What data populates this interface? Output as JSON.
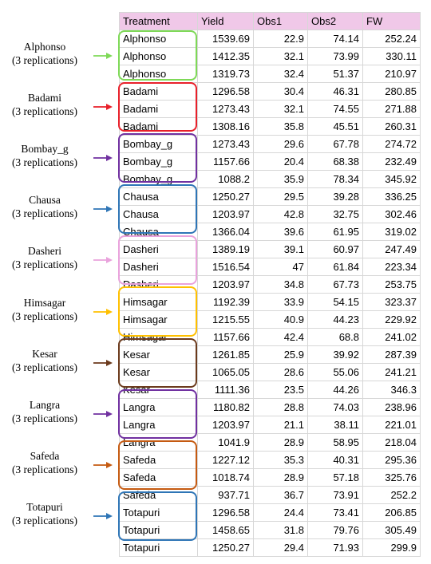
{
  "headers": [
    "Treatment",
    "Yield",
    "Obs1",
    "Obs2",
    "FW"
  ],
  "groups": [
    {
      "label": "Alphonso",
      "sub": "(3 replications)",
      "color": "#7ed957",
      "rows": [
        [
          "Alphonso",
          "1539.69",
          "22.9",
          "74.14",
          "252.24"
        ],
        [
          "Alphonso",
          "1412.35",
          "32.1",
          "73.99",
          "330.11"
        ],
        [
          "Alphonso",
          "1319.73",
          "32.4",
          "51.37",
          "210.97"
        ]
      ]
    },
    {
      "label": "Badami",
      "sub": "(3 replications)",
      "color": "#e8202a",
      "rows": [
        [
          "Badami",
          "1296.58",
          "30.4",
          "46.31",
          "280.85"
        ],
        [
          "Badami",
          "1273.43",
          "32.1",
          "74.55",
          "271.88"
        ],
        [
          "Badami",
          "1308.16",
          "35.8",
          "45.51",
          "260.31"
        ]
      ]
    },
    {
      "label": "Bombay_g",
      "sub": "(3 replications)",
      "color": "#7030a0",
      "rows": [
        [
          "Bombay_g",
          "1273.43",
          "29.6",
          "67.78",
          "274.72"
        ],
        [
          "Bombay_g",
          "1157.66",
          "20.4",
          "68.38",
          "232.49"
        ],
        [
          "Bombay_g",
          "1088.2",
          "35.9",
          "78.34",
          "345.92"
        ]
      ]
    },
    {
      "label": "Chausa",
      "sub": "(3 replications)",
      "color": "#2e75b6",
      "rows": [
        [
          "Chausa",
          "1250.27",
          "29.5",
          "39.28",
          "336.25"
        ],
        [
          "Chausa",
          "1203.97",
          "42.8",
          "32.75",
          "302.46"
        ],
        [
          "Chausa",
          "1366.04",
          "39.6",
          "61.95",
          "319.02"
        ]
      ]
    },
    {
      "label": "Dasheri",
      "sub": "(3 replications)",
      "color": "#e9a2dc",
      "rows": [
        [
          "Dasheri",
          "1389.19",
          "39.1",
          "60.97",
          "247.49"
        ],
        [
          "Dasheri",
          "1516.54",
          "47",
          "61.84",
          "223.34"
        ],
        [
          "Dasheri",
          "1203.97",
          "34.8",
          "67.73",
          "253.75"
        ]
      ]
    },
    {
      "label": "Himsagar",
      "sub": "(3 replications)",
      "color": "#ffc000",
      "rows": [
        [
          "Himsagar",
          "1192.39",
          "33.9",
          "54.15",
          "323.37"
        ],
        [
          "Himsagar",
          "1215.55",
          "40.9",
          "44.23",
          "229.92"
        ],
        [
          "Himsagar",
          "1157.66",
          "42.4",
          "68.8",
          "241.02"
        ]
      ]
    },
    {
      "label": "Kesar",
      "sub": "(3 replications)",
      "color": "#6b3a1c",
      "rows": [
        [
          "Kesar",
          "1261.85",
          "25.9",
          "39.92",
          "287.39"
        ],
        [
          "Kesar",
          "1065.05",
          "28.6",
          "55.06",
          "241.21"
        ],
        [
          "Kesar",
          "1111.36",
          "23.5",
          "44.26",
          "346.3"
        ]
      ]
    },
    {
      "label": "Langra",
      "sub": "(3 replications)",
      "color": "#7030a0",
      "rows": [
        [
          "Langra",
          "1180.82",
          "28.8",
          "74.03",
          "238.96"
        ],
        [
          "Langra",
          "1203.97",
          "21.1",
          "38.11",
          "221.01"
        ],
        [
          "Langra",
          "1041.9",
          "28.9",
          "58.95",
          "218.04"
        ]
      ]
    },
    {
      "label": "Safeda",
      "sub": "(3 replications)",
      "color": "#c55a11",
      "rows": [
        [
          "Safeda",
          "1227.12",
          "35.3",
          "40.31",
          "295.36"
        ],
        [
          "Safeda",
          "1018.74",
          "28.9",
          "57.18",
          "325.76"
        ],
        [
          "Safeda",
          "937.71",
          "36.7",
          "73.91",
          "252.2"
        ]
      ]
    },
    {
      "label": "Totapuri",
      "sub": "(3 replications)",
      "color": "#2e75b6",
      "rows": [
        [
          "Totapuri",
          "1296.58",
          "24.4",
          "73.41",
          "206.85"
        ],
        [
          "Totapuri",
          "1458.65",
          "31.8",
          "79.76",
          "305.49"
        ],
        [
          "Totapuri",
          "1250.27",
          "29.4",
          "71.93",
          "299.9"
        ]
      ]
    }
  ]
}
